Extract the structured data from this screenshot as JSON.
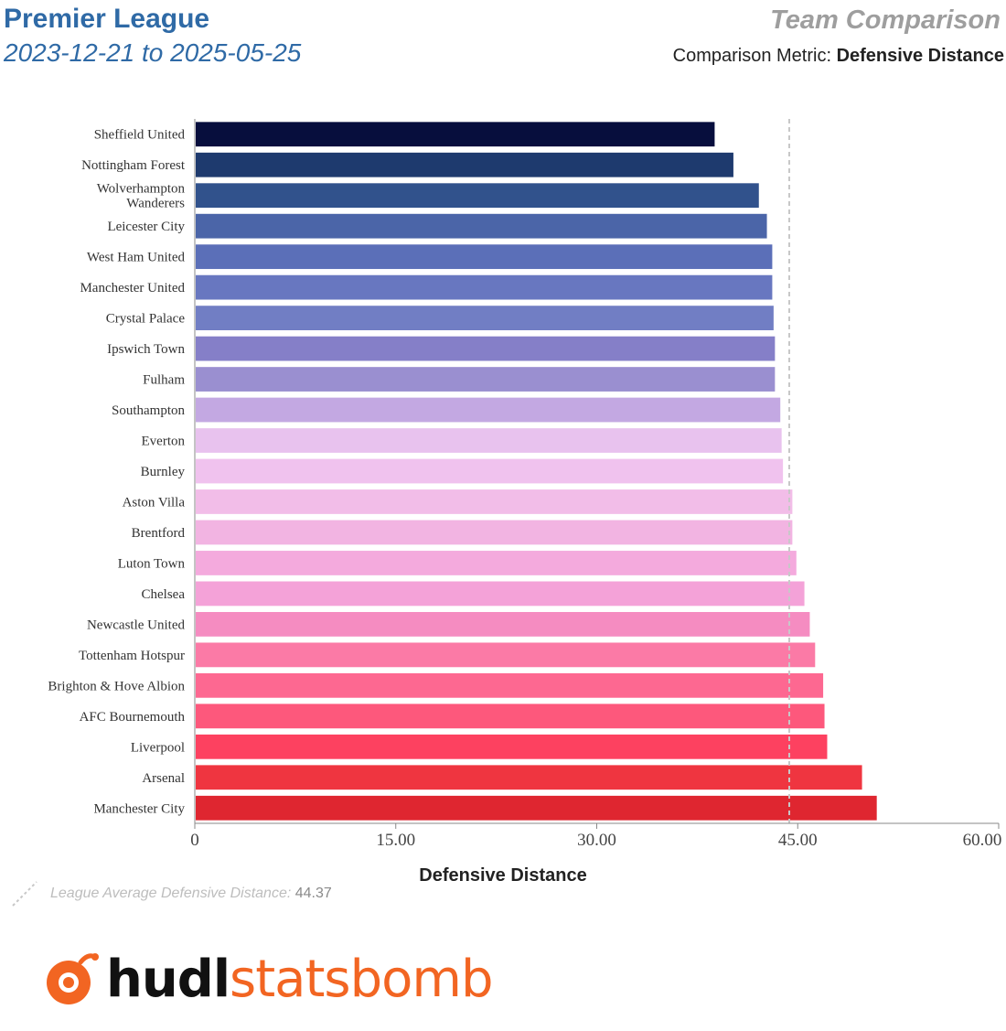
{
  "header": {
    "league": "Premier League",
    "date_range": "2023-12-21 to 2025-05-25",
    "report_title": "Team Comparison",
    "metric_label": "Comparison Metric:",
    "metric_value": "Defensive Distance"
  },
  "footer": {
    "avg_label": "League Average Defensive Distance:",
    "avg_value": "44.37",
    "logo_text_a": "hudl",
    "logo_text_b": "statsbomb"
  },
  "colors": {
    "accent": "#2f6aa6",
    "brand": "#f26522"
  },
  "chart_data": {
    "type": "bar",
    "orientation": "horizontal",
    "xlabel": "Defensive Distance",
    "xlim": [
      0,
      60
    ],
    "xticks": [
      0,
      15,
      30,
      45,
      60
    ],
    "xtick_labels": [
      "0",
      "15.00",
      "30.00",
      "45.00",
      "60.00"
    ],
    "reference_line": {
      "value": 44.37,
      "style": "dashed"
    },
    "categories": [
      "Sheffield United",
      "Nottingham Forest",
      "Wolverhampton Wanderers",
      "Leicester City",
      "West Ham United",
      "Manchester United",
      "Crystal Palace",
      "Ipswich Town",
      "Fulham",
      "Southampton",
      "Everton",
      "Burnley",
      "Aston Villa",
      "Brentford",
      "Luton Town",
      "Chelsea",
      "Newcastle United",
      "Tottenham Hotspur",
      "Brighton & Hove Albion",
      "AFC Bournemouth",
      "Liverpool",
      "Arsenal",
      "Manchester City"
    ],
    "values": [
      38.8,
      40.2,
      42.1,
      42.7,
      43.1,
      43.1,
      43.2,
      43.3,
      43.3,
      43.7,
      43.8,
      43.9,
      44.6,
      44.6,
      44.9,
      45.5,
      45.9,
      46.3,
      46.9,
      47.0,
      47.2,
      49.8,
      50.9
    ],
    "bar_colors": [
      "#070e3d",
      "#1e3a6e",
      "#31528c",
      "#4b65a8",
      "#5b6fb8",
      "#6877c0",
      "#717ec4",
      "#857fc8",
      "#9a8fd0",
      "#c3a8e2",
      "#e8c2ee",
      "#f0c2ee",
      "#f2bde8",
      "#f2b4e2",
      "#f4aadd",
      "#f4a2d8",
      "#f58cc1",
      "#fb7aa6",
      "#fd6891",
      "#fd587c",
      "#fd4160",
      "#ef3540",
      "#df2630"
    ]
  }
}
